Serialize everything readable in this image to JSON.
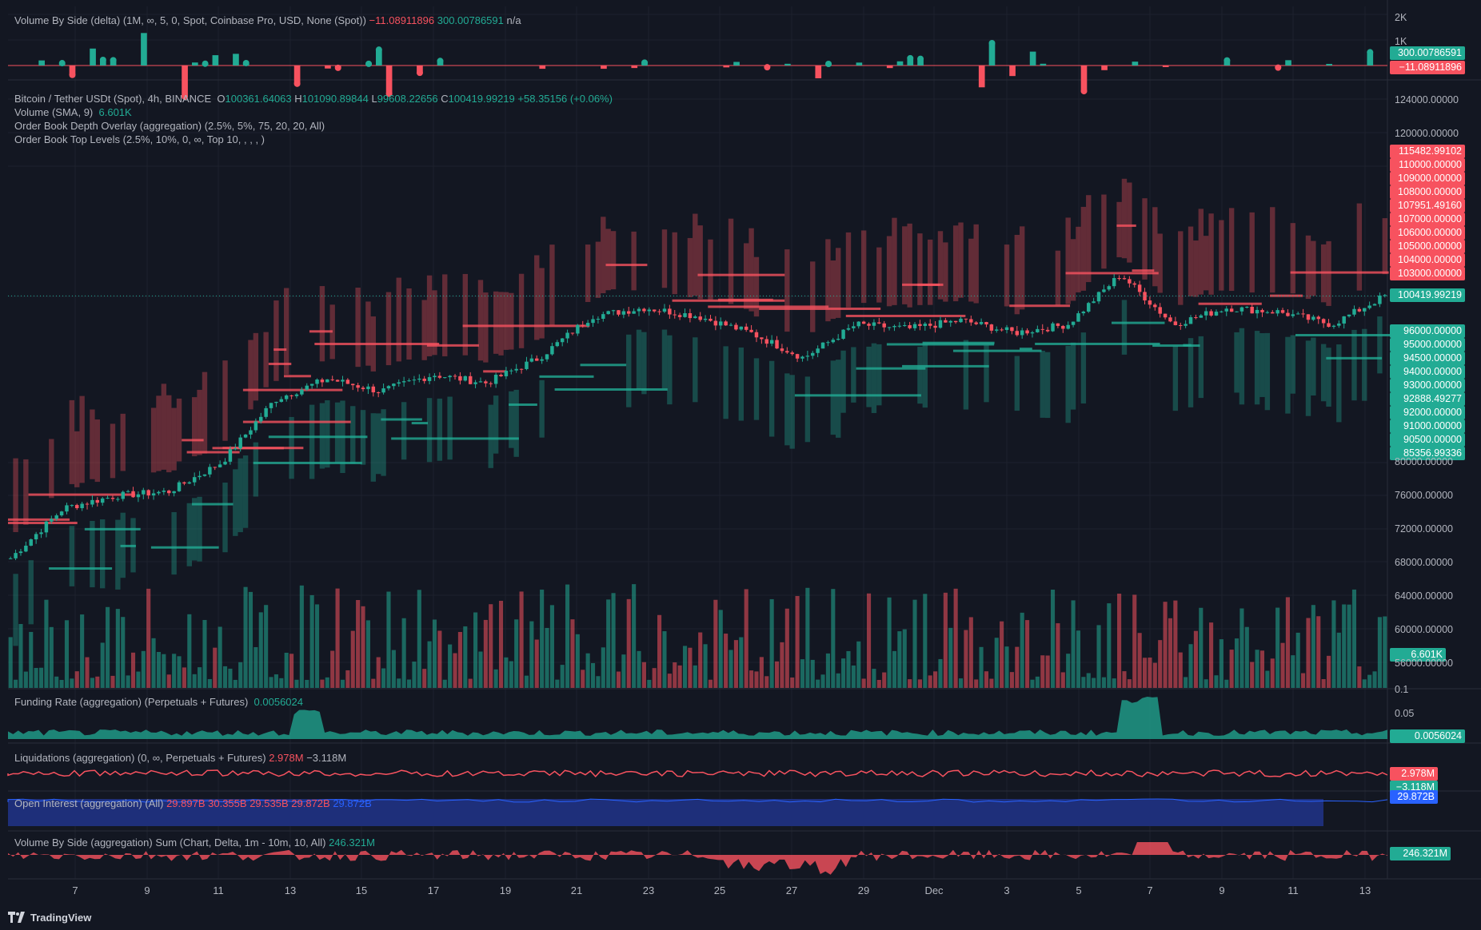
{
  "colors": {
    "bg": "#131722",
    "up": "#22ab94",
    "down": "#f7525f",
    "grid": "#1e222d",
    "text": "#b2b5be",
    "oi": "#1e2f7a",
    "oi_line": "#2962ff"
  },
  "top_pane": {
    "title": "Volume By Side (delta) (1M, ∞, 5, 0, Spot, Coinbase Pro, USD, None (Spot))",
    "v1": "−11.08911896",
    "v2": "300.00786591",
    "v3": "n/a",
    "axis": [
      "2K",
      "1K"
    ],
    "tag_green": "300.00786591",
    "tag_red": "−11.08911896"
  },
  "main_pane": {
    "symbol": "Bitcoin / Tether USDt (Spot), 4h, BINANCE",
    "o_label": "O",
    "o": "100361.64063",
    "h_label": "H",
    "h": "101090.89844",
    "l_label": "L",
    "l": "99608.22656",
    "c_label": "C",
    "c": "100419.99219",
    "chg": "+58.35156 (+0.06%)",
    "volume_title": "Volume (SMA, 9)",
    "volume_val": "6.601K",
    "depth_title": "Order Book Depth Overlay (aggregation) (2.5%, 5%, 75, 20, 20, All)",
    "levels_title": "Order Book Top Levels (2.5%, 10%, 0, ∞, Top 10, , , , )",
    "axis_plain_top": [
      "124000.00000",
      "120000.00000"
    ],
    "red_tags": [
      "115482.99102",
      "110000.00000",
      "109000.00000",
      "108000.00000",
      "107951.49160",
      "107000.00000",
      "106000.00000",
      "105000.00000",
      "104000.00000",
      "103000.00000"
    ],
    "price_tag": "100419.99219",
    "green_tags": [
      "96000.00000",
      "95000.00000",
      "94500.00000",
      "94000.00000",
      "93000.00000",
      "92888.49277",
      "92000.00000",
      "91000.00000",
      "90500.00000",
      "85356.99336"
    ],
    "axis_plain_bottom": [
      "80000.00000",
      "76000.00000",
      "72000.00000",
      "68000.00000",
      "64000.00000",
      "60000.00000",
      "56000.00000"
    ],
    "volume_tag": "6.601K"
  },
  "funding_pane": {
    "title": "Funding Rate (aggregation) (Perpetuals + Futures)",
    "val": "0.0056024",
    "axis": [
      "0.1",
      "0.05"
    ],
    "tag": "0.0056024"
  },
  "liq_pane": {
    "title": "Liquidations (aggregation) (0, ∞, Perpetuals + Futures)",
    "v1": "2.978M",
    "v2": "−3.118M",
    "tag_red": "2.978M",
    "tag_teal": "−3.118M"
  },
  "oi_pane": {
    "title": "Open Interest (aggregation) (All)",
    "o": "29.897B",
    "h": "30.355B",
    "l": "29.535B",
    "c": "29.872B",
    "last": "29.872B",
    "tag": "29.872B"
  },
  "vbs_pane": {
    "title": "Volume By Side (aggregation) Sum (Chart, Delta, 1m - 10m, 10, All)",
    "val": "246.321M",
    "tag": "246.321M"
  },
  "x_axis": [
    "7",
    "9",
    "11",
    "13",
    "15",
    "17",
    "19",
    "21",
    "23",
    "25",
    "27",
    "29",
    "Dec",
    "3",
    "5",
    "7",
    "9",
    "11",
    "13"
  ],
  "footer": {
    "brand": "TradingView",
    "logo_icon": "tradingview-logo-icon"
  },
  "chart_data": {
    "type": "candlestick",
    "title": "Bitcoin / Tether USDt (Spot), 4h, BINANCE",
    "x": [
      "7",
      "9",
      "11",
      "13",
      "15",
      "17",
      "19",
      "21",
      "23",
      "25",
      "27",
      "29",
      "Dec",
      "3",
      "5",
      "7",
      "9",
      "11",
      "13"
    ],
    "y_range": [
      54000,
      126000
    ],
    "price_path_approx": [
      69000,
      75000,
      76500,
      77000,
      80500,
      88000,
      90500,
      89000,
      91000,
      90000,
      93000,
      98000,
      99000,
      98000,
      96000,
      93000,
      97000,
      96500,
      97500,
      96000,
      97000,
      103000,
      97000,
      99000,
      98500,
      97000,
      100420
    ],
    "last_close": 100419.99219
  }
}
